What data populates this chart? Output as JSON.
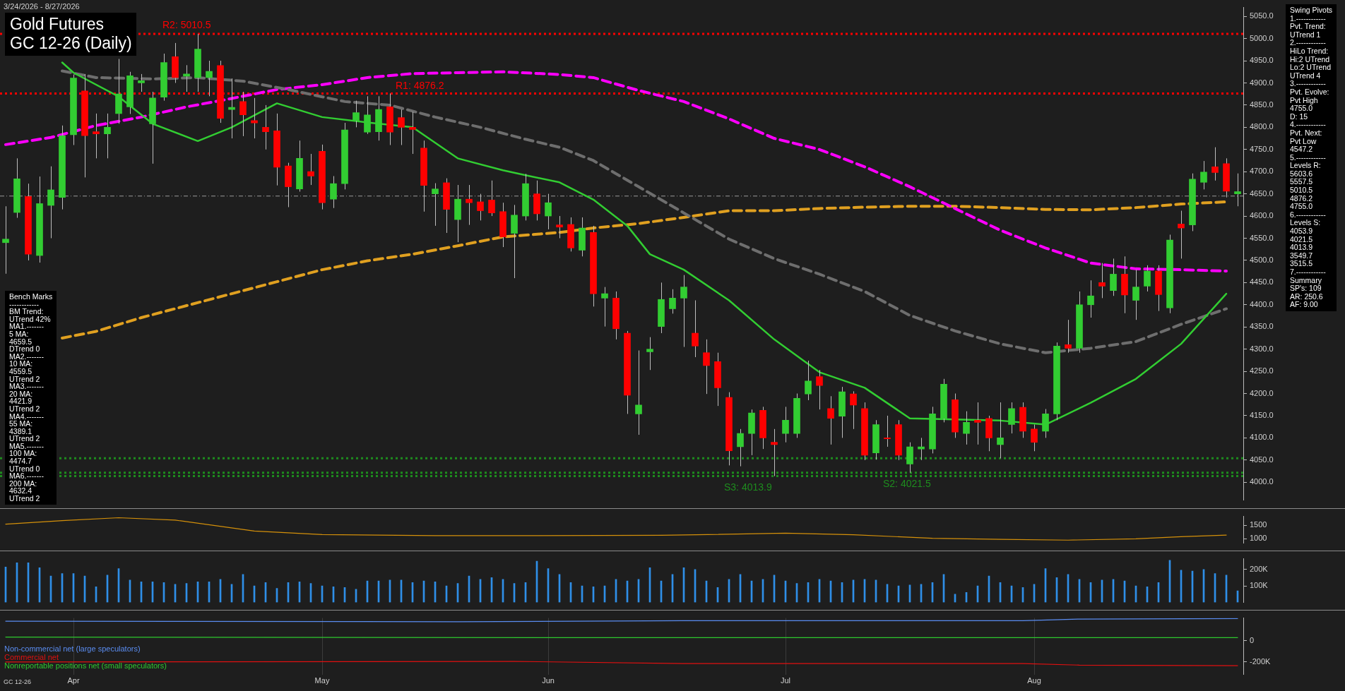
{
  "chart_data": [
    {
      "type": "candlestick",
      "title": "Gold Futures",
      "subtitle": "GC 12-26 (Daily)",
      "categories": [
        null,
        null,
        null,
        null,
        null,
        null,
        null,
        null,
        null,
        null,
        null,
        null,
        null,
        null,
        null,
        null,
        null,
        null,
        null,
        null,
        null,
        null,
        null,
        null,
        null,
        null,
        null,
        null,
        null,
        null,
        null,
        null,
        null,
        null,
        null,
        null,
        null,
        null,
        null,
        null,
        null,
        null,
        null,
        null,
        null,
        null,
        null,
        null,
        null,
        null,
        null,
        null,
        null,
        null,
        null,
        null,
        null,
        null,
        null,
        null,
        null,
        null,
        null,
        null,
        null,
        null,
        null,
        null,
        null,
        null,
        null,
        null,
        null,
        null,
        null,
        null,
        null,
        null,
        null,
        null,
        null,
        null,
        null,
        null,
        null,
        null,
        null,
        null,
        null,
        null,
        null,
        null,
        null,
        null,
        null,
        null,
        null,
        null,
        null,
        null,
        null,
        null,
        null,
        null,
        null,
        null,
        null,
        null,
        null,
        null
      ],
      "ohlc": [
        [
          4540,
          4622,
          4470,
          4548
        ],
        [
          4608,
          4730,
          4596,
          4684
        ],
        [
          4644,
          4673,
          4500,
          4514
        ],
        [
          4511,
          4689,
          4495,
          4628
        ],
        [
          4624,
          4712,
          4550,
          4659
        ],
        [
          4642,
          4804,
          4615,
          4781
        ],
        [
          4783,
          4919,
          4760,
          4911
        ],
        [
          4882,
          4920,
          4687,
          4781
        ],
        [
          4790,
          4831,
          4730,
          4785
        ],
        [
          4785,
          4831,
          4730,
          4800
        ],
        [
          4831,
          4954,
          4808,
          4875
        ],
        [
          4846,
          4925,
          4830,
          4916
        ],
        [
          4900,
          4920,
          4880,
          4905
        ],
        [
          4808,
          4880,
          4718,
          4866
        ],
        [
          4868,
          4966,
          4860,
          4946
        ],
        [
          4959,
          4990,
          4900,
          4912
        ],
        [
          4915,
          4940,
          4880,
          4920
        ],
        [
          4912,
          5010.5,
          4880,
          4976
        ],
        [
          4912,
          4950,
          4870,
          4926
        ],
        [
          4939,
          4950,
          4810,
          4820
        ],
        [
          4840,
          4910,
          4775,
          4845
        ],
        [
          4858,
          4880,
          4780,
          4828
        ],
        [
          4815,
          4866,
          4775,
          4810
        ],
        [
          4800,
          4850,
          4750,
          4790
        ],
        [
          4792,
          4831,
          4669,
          4710
        ],
        [
          4713,
          4720,
          4620,
          4666
        ],
        [
          4661,
          4770,
          4655,
          4730
        ],
        [
          4700,
          4740,
          4670,
          4690
        ],
        [
          4746,
          4761,
          4615,
          4630
        ],
        [
          4638,
          4690,
          4618,
          4673
        ],
        [
          4673,
          4810,
          4660,
          4794
        ],
        [
          4815,
          4860,
          4800,
          4833
        ],
        [
          4789,
          4870,
          4785,
          4828
        ],
        [
          4790,
          4870,
          4770,
          4840
        ],
        [
          4846,
          4876.2,
          4760,
          4789
        ],
        [
          4822,
          4840,
          4760,
          4800
        ],
        [
          4800,
          4835,
          4740,
          4795
        ],
        [
          4753,
          4770,
          4610,
          4669
        ],
        [
          4650,
          4674,
          4578,
          4661
        ],
        [
          4675,
          4685,
          4562,
          4615
        ],
        [
          4592,
          4670,
          4541,
          4638
        ],
        [
          4638,
          4670,
          4580,
          4630
        ],
        [
          4632,
          4650,
          4590,
          4612
        ],
        [
          4636,
          4680,
          4600,
          4607
        ],
        [
          4610,
          4630,
          4530,
          4553
        ],
        [
          4561,
          4625,
          4460,
          4602
        ],
        [
          4600,
          4695,
          4590,
          4673
        ],
        [
          4650,
          4680,
          4590,
          4605
        ],
        [
          4600,
          4650,
          4570,
          4630
        ],
        [
          4580,
          4600,
          4550,
          4575
        ],
        [
          4581,
          4597,
          4520,
          4528
        ],
        [
          4523,
          4597,
          4509,
          4573
        ],
        [
          4563,
          4578,
          4396,
          4425
        ],
        [
          4415,
          4440,
          4351,
          4425
        ],
        [
          4415,
          4430,
          4322,
          4346
        ],
        [
          4336,
          4341,
          4154,
          4196
        ],
        [
          4154,
          4297,
          4107,
          4174
        ],
        [
          4294,
          4327,
          4253,
          4300
        ],
        [
          4351,
          4450,
          4336,
          4412
        ],
        [
          4391,
          4435,
          4380,
          4415
        ],
        [
          4415,
          4467,
          4305,
          4440
        ],
        [
          4336,
          4410,
          4282,
          4307
        ],
        [
          4292,
          4322,
          4199,
          4263
        ],
        [
          4272,
          4292,
          4172,
          4213
        ],
        [
          4191,
          4203,
          4038,
          4071
        ],
        [
          4080,
          4120,
          4036,
          4110
        ],
        [
          4110,
          4164,
          4061,
          4156
        ],
        [
          4162,
          4170,
          4075,
          4100
        ],
        [
          4090,
          4120,
          4013.9,
          4085
        ],
        [
          4110,
          4170,
          4090,
          4140
        ],
        [
          4110,
          4200,
          4100,
          4189
        ],
        [
          4199,
          4274,
          4185,
          4228
        ],
        [
          4238,
          4253,
          4164,
          4218
        ],
        [
          4166,
          4194,
          4085,
          4144
        ],
        [
          4149,
          4215,
          4100,
          4204
        ],
        [
          4199,
          4205,
          4120,
          4174
        ],
        [
          4166,
          4180,
          4050,
          4061
        ],
        [
          4066,
          4140,
          4051,
          4130
        ],
        [
          4100,
          4150,
          4080,
          4098
        ],
        [
          4130,
          4140,
          4050,
          4061
        ],
        [
          4041,
          4090,
          4021.5,
          4080
        ],
        [
          4075,
          4100,
          4050,
          4080
        ],
        [
          4075,
          4170,
          4065,
          4154
        ],
        [
          4144,
          4233,
          4135,
          4221
        ],
        [
          4186,
          4200,
          4100,
          4113
        ],
        [
          4110,
          4160,
          4085,
          4135
        ],
        [
          4140,
          4180,
          4085,
          4135
        ],
        [
          4144,
          4150,
          4070,
          4100
        ],
        [
          4085,
          4180,
          4053.9,
          4100
        ],
        [
          4130,
          4180,
          4110,
          4166
        ],
        [
          4169,
          4180,
          4100,
          4115
        ],
        [
          4120,
          4130,
          4070,
          4090
        ],
        [
          4115,
          4165,
          4100,
          4154
        ],
        [
          4154,
          4315,
          4140,
          4307
        ],
        [
          4310,
          4366,
          4292,
          4302
        ],
        [
          4302,
          4430,
          4292,
          4400
        ],
        [
          4400,
          4455,
          4371,
          4420
        ],
        [
          4450,
          4494,
          4415,
          4442
        ],
        [
          4432,
          4504,
          4420,
          4469
        ],
        [
          4469,
          4509,
          4381,
          4422
        ],
        [
          4410,
          4479,
          4366,
          4440
        ],
        [
          4442,
          4489,
          4430,
          4476
        ],
        [
          4476,
          4489,
          4386,
          4423
        ],
        [
          4393,
          4558,
          4381,
          4546
        ],
        [
          4582,
          4612,
          4504,
          4573
        ],
        [
          4580,
          4696,
          4566,
          4683
        ],
        [
          4676,
          4724,
          4660,
          4699
        ],
        [
          4711,
          4755,
          4680,
          4698
        ],
        [
          4718,
          4730,
          4642,
          4656
        ],
        [
          4650,
          4696,
          4622,
          4655
        ]
      ],
      "series": [
        {
          "type": "line",
          "color": "#32cd32",
          "line_style": "solid",
          "values": [
            null,
            null,
            null,
            null,
            null,
            4946,
            4923,
            null,
            null,
            null,
            4869,
            null,
            null,
            4808,
            null,
            null,
            null,
            4769,
            null,
            null,
            4800,
            null,
            null,
            null,
            4854,
            null,
            null,
            null,
            4823,
            null,
            null,
            null,
            4811,
            null,
            null,
            null,
            4800,
            null,
            null,
            null,
            4730,
            null,
            null,
            null,
            4703,
            null,
            4692,
            null,
            null,
            4676,
            null,
            null,
            4637,
            null,
            null,
            4578,
            null,
            4514,
            null,
            null,
            4479,
            null,
            null,
            null,
            4410,
            null,
            null,
            null,
            4322,
            null,
            null,
            null,
            4248,
            null,
            null,
            null,
            4213,
            null,
            null,
            null,
            4144,
            null,
            null,
            null,
            null,
            null,
            null,
            null,
            4139,
            null,
            null,
            null,
            4130,
            null,
            null,
            null,
            4179,
            null,
            null,
            null,
            4233,
            null,
            null,
            null,
            4312,
            null,
            null,
            null,
            4425,
            null
          ]
        },
        {
          "type": "line",
          "color": "#6e6e6e",
          "line_style": "dashed",
          "values": [
            null,
            null,
            null,
            null,
            null,
            4927,
            null,
            null,
            4912,
            null,
            null,
            null,
            null,
            4909,
            null,
            null,
            null,
            4912,
            null,
            null,
            null,
            4904,
            null,
            null,
            null,
            4885,
            null,
            null,
            null,
            null,
            4858,
            null,
            null,
            null,
            4850,
            null,
            null,
            null,
            4823,
            null,
            null,
            null,
            4800,
            null,
            null,
            null,
            4773,
            null,
            null,
            4755,
            null,
            null,
            4725,
            null,
            null,
            null,
            4666,
            null,
            null,
            null,
            4607,
            null,
            null,
            null,
            4548,
            null,
            null,
            null,
            4504,
            null,
            null,
            null,
            4469,
            null,
            null,
            null,
            4430,
            null,
            null,
            null,
            4376,
            null,
            null,
            null,
            4341,
            null,
            null,
            null,
            4312,
            null,
            null,
            null,
            4292,
            null,
            null,
            null,
            4302,
            null,
            null,
            null,
            4317,
            null,
            null,
            null,
            4356,
            null,
            null,
            null,
            4391,
            null
          ]
        },
        {
          "type": "line",
          "color": "#ff00ff",
          "line_style": "dashed",
          "values": [
            4761,
            null,
            null,
            null,
            4777,
            null,
            null,
            null,
            4804,
            null,
            null,
            null,
            4823,
            null,
            null,
            null,
            4846,
            null,
            null,
            null,
            4865,
            null,
            null,
            null,
            4885,
            null,
            null,
            null,
            4896,
            null,
            null,
            null,
            4912,
            null,
            null,
            null,
            4921,
            null,
            null,
            null,
            4923,
            null,
            null,
            null,
            4925,
            null,
            null,
            null,
            null,
            4919,
            null,
            null,
            4912,
            null,
            null,
            null,
            4883,
            null,
            null,
            null,
            4858,
            null,
            null,
            null,
            4819,
            null,
            null,
            null,
            4775,
            null,
            null,
            null,
            4750,
            null,
            null,
            null,
            4711,
            null,
            null,
            null,
            4666,
            null,
            null,
            null,
            4617,
            null,
            null,
            null,
            4568,
            null,
            null,
            null,
            4528,
            null,
            null,
            null,
            4494,
            null,
            null,
            null,
            4481,
            null,
            null,
            null,
            4479,
            null,
            null,
            null,
            4476,
            null
          ]
        },
        {
          "type": "line",
          "color": "#e0a020",
          "line_style": "dashed",
          "values": [
            null,
            null,
            null,
            null,
            null,
            4325,
            null,
            null,
            4340,
            null,
            null,
            null,
            4371,
            null,
            null,
            null,
            4398,
            null,
            null,
            null,
            4425,
            null,
            null,
            null,
            4452,
            null,
            null,
            null,
            4479,
            null,
            null,
            null,
            4499,
            null,
            null,
            null,
            4514,
            null,
            null,
            null,
            4533,
            null,
            null,
            null,
            4553,
            null,
            null,
            null,
            null,
            4563,
            null,
            null,
            4573,
            null,
            null,
            null,
            4583,
            null,
            null,
            null,
            4597,
            null,
            null,
            null,
            4612,
            null,
            null,
            null,
            4612,
            null,
            null,
            null,
            4617,
            null,
            null,
            null,
            4620,
            null,
            null,
            null,
            4622,
            null,
            null,
            null,
            4622,
            null,
            null,
            null,
            4619,
            null,
            null,
            null,
            4615,
            null,
            null,
            null,
            4614,
            null,
            null,
            null,
            4619,
            null,
            null,
            null,
            4627,
            null,
            null,
            null,
            4632,
            null
          ]
        }
      ],
      "ylim": [
        3960,
        5070
      ],
      "yticks": [
        {
          "value": 4000,
          "label": "4000.0"
        },
        {
          "value": 4050,
          "label": "4050.0"
        },
        {
          "value": 4100,
          "label": "4100.0"
        },
        {
          "value": 4150,
          "label": "4150.0"
        },
        {
          "value": 4200,
          "label": "4200.0"
        },
        {
          "value": 4250,
          "label": "4250.0"
        },
        {
          "value": 4300,
          "label": "4300.0"
        },
        {
          "value": 4350,
          "label": "4350.0"
        },
        {
          "value": 4400,
          "label": "4400.0"
        },
        {
          "value": 4450,
          "label": "4450.0"
        },
        {
          "value": 4500,
          "label": "4500.0"
        },
        {
          "value": 4550,
          "label": "4550.0"
        },
        {
          "value": 4600,
          "label": "4600.0"
        },
        {
          "value": 4650,
          "label": "4650.0"
        },
        {
          "value": 4700,
          "label": "4700.0"
        },
        {
          "value": 4750,
          "label": "4750.0"
        },
        {
          "value": 4800,
          "label": "4800.0"
        },
        {
          "value": 4850,
          "label": "4850.0"
        },
        {
          "value": 4900,
          "label": "4900.0"
        },
        {
          "value": 4950,
          "label": "4950.0"
        },
        {
          "value": 5000,
          "label": "5000.0"
        },
        {
          "value": 5050,
          "label": "5050.0"
        }
      ],
      "ref_lines": [
        {
          "axis": "y",
          "value": 5010.5,
          "label": "R2: 5010.5",
          "color": "#ff0000",
          "line_style": "dotted"
        },
        {
          "axis": "y",
          "value": 4876.2,
          "label": "R1: 4876.2",
          "color": "#ff0000",
          "line_style": "dotted"
        },
        {
          "axis": "y",
          "value": 4013.9,
          "label": "S3: 4013.9",
          "color": "#1e8c1e",
          "line_style": "dotted"
        },
        {
          "axis": "y",
          "value": 4021.5,
          "label": "S2: 4021.5",
          "color": "#1e8c1e",
          "line_style": "dotted"
        },
        {
          "axis": "y",
          "value": 4053.9,
          "color": "#1e8c1e",
          "line_style": "dotted"
        },
        {
          "axis": "y",
          "value": 4645,
          "color": "#9a9a9a",
          "line_style": "dashed"
        }
      ],
      "annotations": [
        "3/24/2026 - 8/27/2026",
        "Bench Marks\n------------\nBM Trend:\nUTrend 42%\nMA1.-------\n5 MA:\n4659.5\nDTrend 0\nMA2.-------\n10 MA:\n4559.5\nUTrend 2\nMA3.-------\n20 MA:\n4421.9\nUTrend 2\nMA4.-------\n55 MA:\n4389.1\nUTrend 2\nMA5.-------\n100 MA:\n4474.7\nUTrend 0\nMA6.-------\n200 MA:\n4632.4\nUTrend 2",
        "Swing Pivots\n1.------------\nPvt. Trend:\nUTrend 1\n2.------------\nHiLo Trend:\nHi:2 UTrend\nLo:2 UTrend\nUTrend 4\n3.------------\nPvt. Evolve:\nPvt High\n4755.0\nD: 15\n4.------------\nPvt. Next:\nPvt Low\n4547.2\n5.------------\nLevels R:\n5603.6\n5557.5\n5010.5\n4876.2\n4755.0\n6.------------\nLevels S:\n4053.9\n4021.5\n4013.9\n3549.7\n3515.5\n7.------------\nSummary\nSP's: 109\nAR: 250.6\nAF: 9.00"
      ],
      "tick_labels": "y"
    },
    {
      "type": "line",
      "color": "#d4900a",
      "categories": [
        null,
        null,
        null,
        null,
        null,
        null,
        null,
        null,
        null,
        null,
        null,
        null,
        null,
        null,
        null,
        null,
        null,
        null,
        null,
        null,
        null,
        null,
        null,
        null,
        null,
        null,
        null,
        null,
        null,
        null,
        null,
        null,
        null,
        null,
        null,
        null,
        null,
        null,
        null,
        null,
        null,
        null,
        null,
        null,
        null,
        null,
        null,
        null,
        null,
        null,
        null,
        null,
        null,
        null,
        null,
        null,
        null,
        null,
        null,
        null,
        null,
        null,
        null,
        null,
        null,
        null,
        null,
        null,
        null,
        null,
        null,
        null,
        null,
        null,
        null,
        null,
        null,
        null,
        null,
        null,
        null,
        null,
        null,
        null,
        null,
        null,
        null,
        null,
        null,
        null,
        null,
        null,
        null,
        null,
        null,
        null,
        null,
        null,
        null,
        null,
        null,
        null,
        null,
        null,
        null,
        null,
        null,
        null,
        null,
        null
      ],
      "values": [
        1550,
        null,
        null,
        null,
        null,
        1680,
        null,
        null,
        null,
        null,
        1790,
        null,
        null,
        null,
        null,
        1700,
        null,
        null,
        null,
        null,
        null,
        null,
        1290,
        null,
        null,
        null,
        null,
        null,
        1160,
        null,
        null,
        null,
        null,
        null,
        null,
        null,
        null,
        null,
        1120,
        null,
        null,
        null,
        null,
        null,
        null,
        null,
        null,
        1120,
        null,
        null,
        null,
        null,
        null,
        null,
        null,
        null,
        null,
        null,
        1130,
        null,
        null,
        null,
        null,
        null,
        null,
        null,
        null,
        null,
        null,
        1210,
        null,
        null,
        null,
        null,
        null,
        1150,
        null,
        null,
        null,
        null,
        null,
        null,
        1020,
        null,
        null,
        null,
        null,
        null,
        980,
        null,
        null,
        null,
        null,
        null,
        950,
        null,
        null,
        null,
        null,
        null,
        1000,
        null,
        null,
        null,
        1080,
        null,
        null,
        null,
        1140,
        null
      ],
      "ylim": [
        840,
        1840
      ],
      "yticks": [
        1000,
        1500
      ],
      "tick_labels": "y"
    },
    {
      "type": "bar",
      "color": "#2f8fe8",
      "categories": [
        null,
        null,
        null,
        null,
        null,
        null,
        null,
        null,
        null,
        null,
        null,
        null,
        null,
        null,
        null,
        null,
        null,
        null,
        null,
        null,
        null,
        null,
        null,
        null,
        null,
        null,
        null,
        null,
        null,
        null,
        null,
        null,
        null,
        null,
        null,
        null,
        null,
        null,
        null,
        null,
        null,
        null,
        null,
        null,
        null,
        null,
        null,
        null,
        null,
        null,
        null,
        null,
        null,
        null,
        null,
        null,
        null,
        null,
        null,
        null,
        null,
        null,
        null,
        null,
        null,
        null,
        null,
        null,
        null,
        null,
        null,
        null,
        null,
        null,
        null,
        null,
        null,
        null,
        null,
        null,
        null,
        null,
        null,
        null,
        null,
        null,
        null,
        null,
        null,
        null,
        null,
        null,
        null,
        null,
        null,
        null,
        null,
        null,
        null,
        null,
        null,
        null,
        null,
        null,
        null,
        null,
        null,
        null,
        null,
        null
      ],
      "values": [
        215000,
        240000,
        240000,
        210000,
        160000,
        175000,
        175000,
        160000,
        95000,
        165000,
        205000,
        135000,
        125000,
        125000,
        120000,
        110000,
        115000,
        125000,
        125000,
        140000,
        110000,
        170000,
        100000,
        120000,
        85000,
        120000,
        125000,
        115000,
        100000,
        95000,
        90000,
        80000,
        130000,
        130000,
        135000,
        135000,
        120000,
        130000,
        125000,
        100000,
        115000,
        160000,
        140000,
        150000,
        140000,
        115000,
        120000,
        250000,
        205000,
        170000,
        120000,
        100000,
        95000,
        100000,
        140000,
        130000,
        140000,
        210000,
        130000,
        170000,
        210000,
        200000,
        130000,
        90000,
        140000,
        170000,
        130000,
        140000,
        165000,
        130000,
        115000,
        120000,
        140000,
        130000,
        120000,
        135000,
        140000,
        135000,
        110000,
        100000,
        105000,
        110000,
        120000,
        170000,
        50000,
        60000,
        100000,
        160000,
        120000,
        100000,
        90000,
        110000,
        205000,
        150000,
        170000,
        140000,
        120000,
        135000,
        140000,
        130000,
        100000,
        95000,
        120000,
        255000,
        195000,
        190000,
        200000,
        175000,
        165000,
        70000
      ],
      "ylim": [
        0,
        265000
      ],
      "yticks": [
        {
          "value": 100000,
          "label": "100K"
        },
        {
          "value": 200000,
          "label": "200K"
        }
      ],
      "tick_labels": "y"
    },
    {
      "type": "line",
      "categories": [
        null,
        null,
        null,
        null,
        null,
        null,
        "Apr",
        null,
        null,
        null,
        null,
        null,
        null,
        null,
        null,
        null,
        null,
        null,
        null,
        null,
        null,
        null,
        null,
        null,
        null,
        null,
        null,
        null,
        "May",
        null,
        null,
        null,
        null,
        null,
        null,
        null,
        null,
        null,
        null,
        null,
        null,
        null,
        null,
        null,
        null,
        null,
        null,
        null,
        "Jun",
        null,
        null,
        null,
        null,
        null,
        null,
        null,
        null,
        null,
        null,
        null,
        null,
        null,
        null,
        null,
        null,
        null,
        null,
        null,
        null,
        "Jul",
        null,
        null,
        null,
        null,
        null,
        null,
        null,
        null,
        null,
        null,
        null,
        null,
        null,
        null,
        null,
        null,
        null,
        null,
        null,
        null,
        null,
        "Aug",
        null,
        null,
        null,
        null,
        null,
        null,
        null,
        null,
        null,
        null,
        null,
        null,
        null,
        null,
        null,
        null,
        null,
        null
      ],
      "series": [
        {
          "name": "Non-commercial net (large speculators)",
          "color": "#5a8cf0",
          "values": [
            185000,
            null,
            null,
            null,
            null,
            null,
            null,
            null,
            null,
            null,
            null,
            null,
            null,
            null,
            null,
            null,
            null,
            null,
            null,
            null,
            null,
            null,
            null,
            null,
            null,
            null,
            null,
            null,
            null,
            null,
            null,
            null,
            null,
            null,
            null,
            null,
            null,
            null,
            null,
            null,
            180000,
            null,
            null,
            null,
            null,
            null,
            null,
            null,
            null,
            null,
            null,
            null,
            null,
            null,
            null,
            null,
            null,
            null,
            null,
            null,
            190000,
            null,
            null,
            null,
            null,
            null,
            null,
            null,
            null,
            null,
            null,
            null,
            null,
            null,
            null,
            null,
            null,
            null,
            null,
            null,
            null,
            null,
            null,
            null,
            null,
            null,
            null,
            null,
            null,
            null,
            190000,
            null,
            null,
            null,
            null,
            205000,
            null,
            null,
            null,
            null,
            null,
            null,
            null,
            null,
            null,
            null,
            null,
            null,
            null,
            210000
          ]
        },
        {
          "name": "Commercial net",
          "color": "#e01010",
          "values": [
            -200000,
            null,
            null,
            null,
            null,
            null,
            null,
            null,
            null,
            null,
            null,
            null,
            null,
            null,
            null,
            null,
            null,
            null,
            null,
            null,
            null,
            null,
            null,
            null,
            null,
            null,
            null,
            null,
            null,
            null,
            null,
            null,
            null,
            null,
            null,
            null,
            null,
            null,
            null,
            null,
            null,
            null,
            null,
            null,
            null,
            -195000,
            null,
            null,
            null,
            null,
            null,
            null,
            null,
            null,
            null,
            null,
            null,
            null,
            null,
            null,
            -215000,
            null,
            null,
            null,
            null,
            null,
            null,
            null,
            null,
            null,
            null,
            null,
            null,
            null,
            null,
            null,
            null,
            null,
            null,
            null,
            null,
            null,
            null,
            null,
            null,
            null,
            null,
            null,
            null,
            null,
            -215000,
            null,
            null,
            null,
            null,
            -230000,
            null,
            null,
            null,
            null,
            null,
            null,
            null,
            null,
            null,
            null,
            null,
            null,
            null,
            -235000
          ]
        },
        {
          "name": "Nonreportable positions net (small speculators)",
          "color": "#2ec82e",
          "values": [
            35000,
            null,
            null,
            null,
            null,
            null,
            null,
            null,
            null,
            null,
            null,
            null,
            null,
            null,
            null,
            null,
            null,
            null,
            null,
            null,
            null,
            null,
            null,
            null,
            null,
            null,
            null,
            null,
            null,
            null,
            null,
            null,
            null,
            null,
            null,
            null,
            null,
            null,
            null,
            null,
            null,
            null,
            null,
            null,
            null,
            null,
            null,
            null,
            null,
            null,
            30000,
            null,
            null,
            null,
            null,
            null,
            null,
            null,
            null,
            null,
            null,
            null,
            null,
            null,
            null,
            null,
            null,
            null,
            null,
            null,
            null,
            null,
            null,
            null,
            null,
            null,
            null,
            null,
            null,
            null,
            null,
            null,
            null,
            null,
            null,
            null,
            null,
            null,
            null,
            null,
            null,
            null,
            null,
            null,
            null,
            null,
            null,
            null,
            null,
            null,
            null,
            null,
            null,
            null,
            null,
            null,
            null,
            null,
            null,
            30000
          ]
        }
      ],
      "ylim": [
        -320000,
        215000
      ],
      "yticks": [
        0,
        {
          "value": -200000,
          "label": "-200K"
        }
      ],
      "grid": "x",
      "legend": "bottom left",
      "annotations": [
        "GC 12-26"
      ]
    }
  ]
}
